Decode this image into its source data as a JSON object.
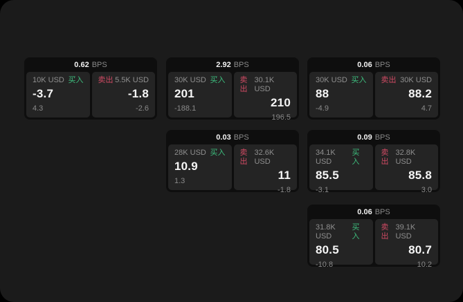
{
  "labels": {
    "buy": "买入",
    "sell": "卖出",
    "unit": "BPS"
  },
  "colors": {
    "background": "#000000",
    "surface": "#1b1b1b",
    "card": "#0e0e0e",
    "panel": "#242424",
    "buy_accent": "#3dbd7d",
    "sell_accent": "#cf4a63",
    "text_primary": "#f2f2f2",
    "text_secondary": "#8f8f8f"
  },
  "cards": [
    {
      "bps": "0.62",
      "buy": {
        "amount": "10K USD",
        "price": "-3.7",
        "delta": "4.3"
      },
      "sell": {
        "amount": "5.5K USD",
        "price": "-1.8",
        "delta": "-2.6"
      }
    },
    {
      "bps": "2.92",
      "buy": {
        "amount": "30K USD",
        "price": "201",
        "delta": "-188.1"
      },
      "sell": {
        "amount": "30.1K USD",
        "price": "210",
        "delta": "196.5"
      }
    },
    {
      "bps": "0.06",
      "buy": {
        "amount": "30K USD",
        "price": "88",
        "delta": "-4.9"
      },
      "sell": {
        "amount": "30K USD",
        "price": "88.2",
        "delta": "4.7"
      }
    },
    {
      "bps": "0.03",
      "buy": {
        "amount": "28K USD",
        "price": "10.9",
        "delta": "1.3"
      },
      "sell": {
        "amount": "32.6K USD",
        "price": "11",
        "delta": "-1.8"
      }
    },
    {
      "bps": "0.09",
      "buy": {
        "amount": "34.1K USD",
        "price": "85.5",
        "delta": "-3.1"
      },
      "sell": {
        "amount": "32.8K USD",
        "price": "85.8",
        "delta": "3.0"
      }
    },
    {
      "bps": "0.06",
      "buy": {
        "amount": "31.8K USD",
        "price": "80.5",
        "delta": "-10.8"
      },
      "sell": {
        "amount": "39.1K USD",
        "price": "80.7",
        "delta": "10.2"
      }
    }
  ]
}
